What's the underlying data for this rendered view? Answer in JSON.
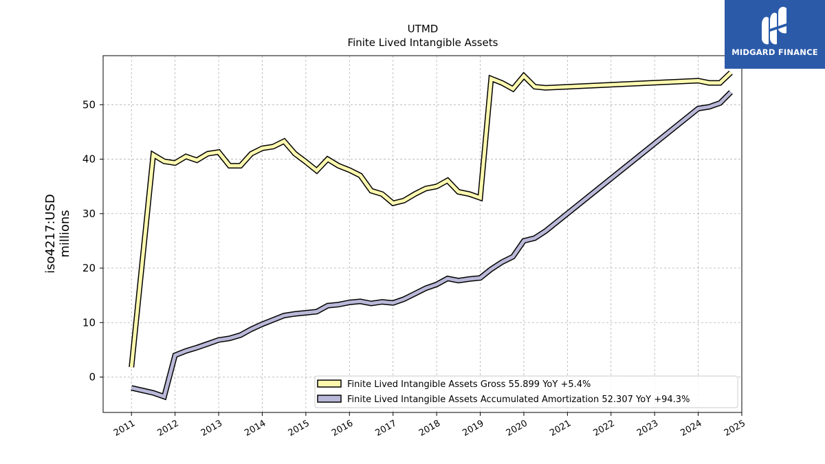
{
  "brand": {
    "name": "MIDGARD FINANCE",
    "bg_color": "#2b5aa9"
  },
  "chart_data": {
    "type": "line",
    "title": "UTMD",
    "subtitle": "Finite Lived Intangible Assets",
    "ylabel": "iso4217:USD\nmillions",
    "xlabel": "",
    "xlim": [
      2010.35,
      2025.0
    ],
    "ylim": [
      -6.5,
      59
    ],
    "x_ticks": [
      "2011",
      "2012",
      "2013",
      "2014",
      "2015",
      "2016",
      "2017",
      "2018",
      "2019",
      "2020",
      "2021",
      "2022",
      "2023",
      "2024",
      "2025"
    ],
    "y_ticks": [
      0,
      10,
      20,
      30,
      40,
      50
    ],
    "grid": true,
    "legend_position": "bottom-right",
    "series": [
      {
        "name": "Finite Lived Intangible Assets Gross  55.899 YoY +5.4%",
        "color": "#fff9b0",
        "x": [
          2011.0,
          2011.5,
          2011.75,
          2012.0,
          2012.25,
          2012.5,
          2012.75,
          2013.0,
          2013.25,
          2013.5,
          2013.75,
          2014.0,
          2014.25,
          2014.5,
          2014.75,
          2015.0,
          2015.25,
          2015.5,
          2015.75,
          2016.0,
          2016.25,
          2016.5,
          2016.75,
          2017.0,
          2017.25,
          2017.5,
          2017.75,
          2018.0,
          2018.25,
          2018.5,
          2018.75,
          2019.0,
          2019.25,
          2019.5,
          2019.75,
          2020.0,
          2020.25,
          2020.5,
          2024.0,
          2024.25,
          2024.5,
          2024.75
        ],
        "values": [
          1.8,
          40.8,
          39.6,
          39.3,
          40.5,
          39.8,
          41.0,
          41.3,
          38.8,
          38.8,
          41.0,
          42.0,
          42.3,
          43.3,
          41.0,
          39.5,
          37.9,
          40.0,
          38.8,
          38.0,
          37.0,
          34.2,
          33.6,
          31.9,
          32.4,
          33.6,
          34.6,
          35.0,
          36.1,
          34.0,
          33.6,
          32.9,
          54.8,
          54.0,
          52.9,
          55.3,
          53.3,
          53.1,
          54.4,
          54.0,
          54.0,
          55.9
        ]
      },
      {
        "name": "Finite Lived Intangible Assets Accumulated Amortization  52.307 YoY +94.3%",
        "color": "#b9b8d8",
        "x": [
          2011.0,
          2011.5,
          2011.75,
          2012.0,
          2012.25,
          2012.5,
          2012.75,
          2013.0,
          2013.25,
          2013.5,
          2013.75,
          2014.0,
          2014.25,
          2014.5,
          2014.75,
          2015.0,
          2015.25,
          2015.5,
          2015.75,
          2016.0,
          2016.25,
          2016.5,
          2016.75,
          2017.0,
          2017.25,
          2017.5,
          2017.75,
          2018.0,
          2018.25,
          2018.5,
          2018.75,
          2019.0,
          2019.25,
          2019.5,
          2019.75,
          2020.0,
          2020.25,
          2020.5,
          2024.0,
          2024.25,
          2024.5,
          2024.75
        ],
        "values": [
          -2.0,
          -2.9,
          -3.6,
          4.0,
          4.8,
          5.4,
          6.1,
          6.8,
          7.1,
          7.7,
          8.8,
          9.7,
          10.5,
          11.3,
          11.6,
          11.8,
          12.0,
          13.1,
          13.3,
          13.7,
          13.9,
          13.5,
          13.8,
          13.6,
          14.3,
          15.3,
          16.3,
          17.0,
          18.1,
          17.7,
          18.0,
          18.2,
          19.8,
          21.1,
          22.1,
          25.0,
          25.5,
          26.8,
          49.3,
          49.6,
          50.3,
          52.3
        ]
      }
    ]
  }
}
